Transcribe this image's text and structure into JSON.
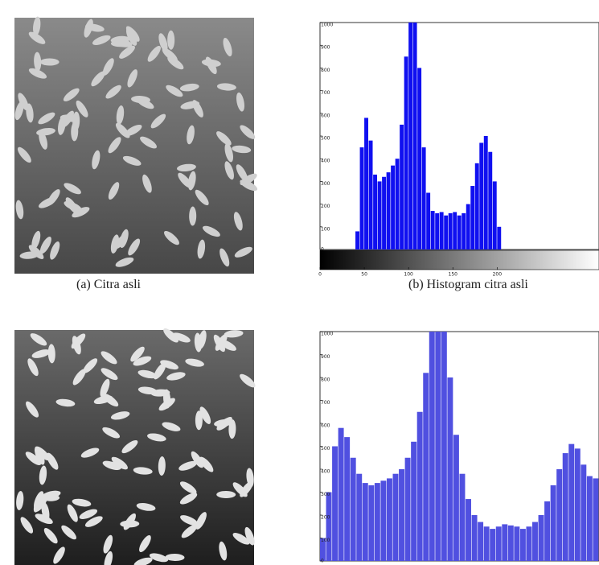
{
  "figure": {
    "captions": [
      "(a) Citra asli",
      "(b) Histogram citra asli"
    ]
  },
  "chart_data": [
    {
      "type": "histogram",
      "color": "#1010f0",
      "colorbar": true,
      "bins": [
        0,
        5,
        10,
        15,
        20,
        25,
        30,
        35,
        40,
        45,
        50,
        55,
        60,
        65,
        70,
        75,
        80,
        85,
        90,
        95,
        100,
        105,
        110,
        115,
        120,
        125,
        130,
        135,
        140,
        145,
        150,
        155,
        160,
        165,
        170,
        175,
        180,
        185,
        190,
        195,
        200,
        205,
        210,
        215,
        220,
        225,
        230,
        235,
        240,
        245,
        250,
        255
      ],
      "counts": [
        0,
        0,
        0,
        0,
        0,
        0,
        0,
        0,
        80,
        450,
        580,
        480,
        330,
        300,
        320,
        340,
        370,
        400,
        550,
        850,
        1000,
        1000,
        800,
        450,
        250,
        170,
        160,
        165,
        150,
        160,
        165,
        150,
        160,
        200,
        280,
        380,
        470,
        500,
        430,
        300,
        100,
        0,
        0,
        0,
        0,
        0,
        0,
        0,
        0,
        0,
        0
      ],
      "xlim": [
        0,
        315
      ],
      "xticks": [
        0,
        50,
        100,
        150,
        200
      ],
      "ylim": [
        0,
        1000
      ],
      "yticks": [
        0,
        100,
        200,
        300,
        400,
        500,
        600,
        700,
        800,
        900,
        1000
      ]
    },
    {
      "type": "histogram",
      "color": "#5050e0",
      "colorbar": false,
      "bins": [
        0,
        5,
        10,
        15,
        20,
        25,
        30,
        35,
        40,
        45,
        50,
        55,
        60,
        65,
        70,
        75,
        80,
        85,
        90,
        95,
        100,
        105,
        110,
        115,
        120,
        125,
        130,
        135,
        140,
        145,
        150,
        155,
        160,
        165,
        170,
        175,
        180,
        185,
        190,
        195,
        200,
        205,
        210,
        215,
        220,
        225,
        230
      ],
      "counts": [
        100,
        300,
        500,
        580,
        540,
        450,
        380,
        340,
        330,
        340,
        350,
        360,
        380,
        400,
        450,
        520,
        650,
        820,
        1000,
        1000,
        1000,
        800,
        550,
        380,
        270,
        200,
        170,
        150,
        140,
        150,
        160,
        155,
        150,
        140,
        150,
        170,
        200,
        260,
        330,
        400,
        470,
        510,
        490,
        420,
        370,
        360
      ],
      "xlim": [
        0,
        230
      ],
      "ylim": [
        0,
        1000
      ],
      "yticks": [
        0,
        100,
        200,
        300,
        400,
        500,
        600,
        700,
        800,
        900,
        1000
      ]
    }
  ]
}
